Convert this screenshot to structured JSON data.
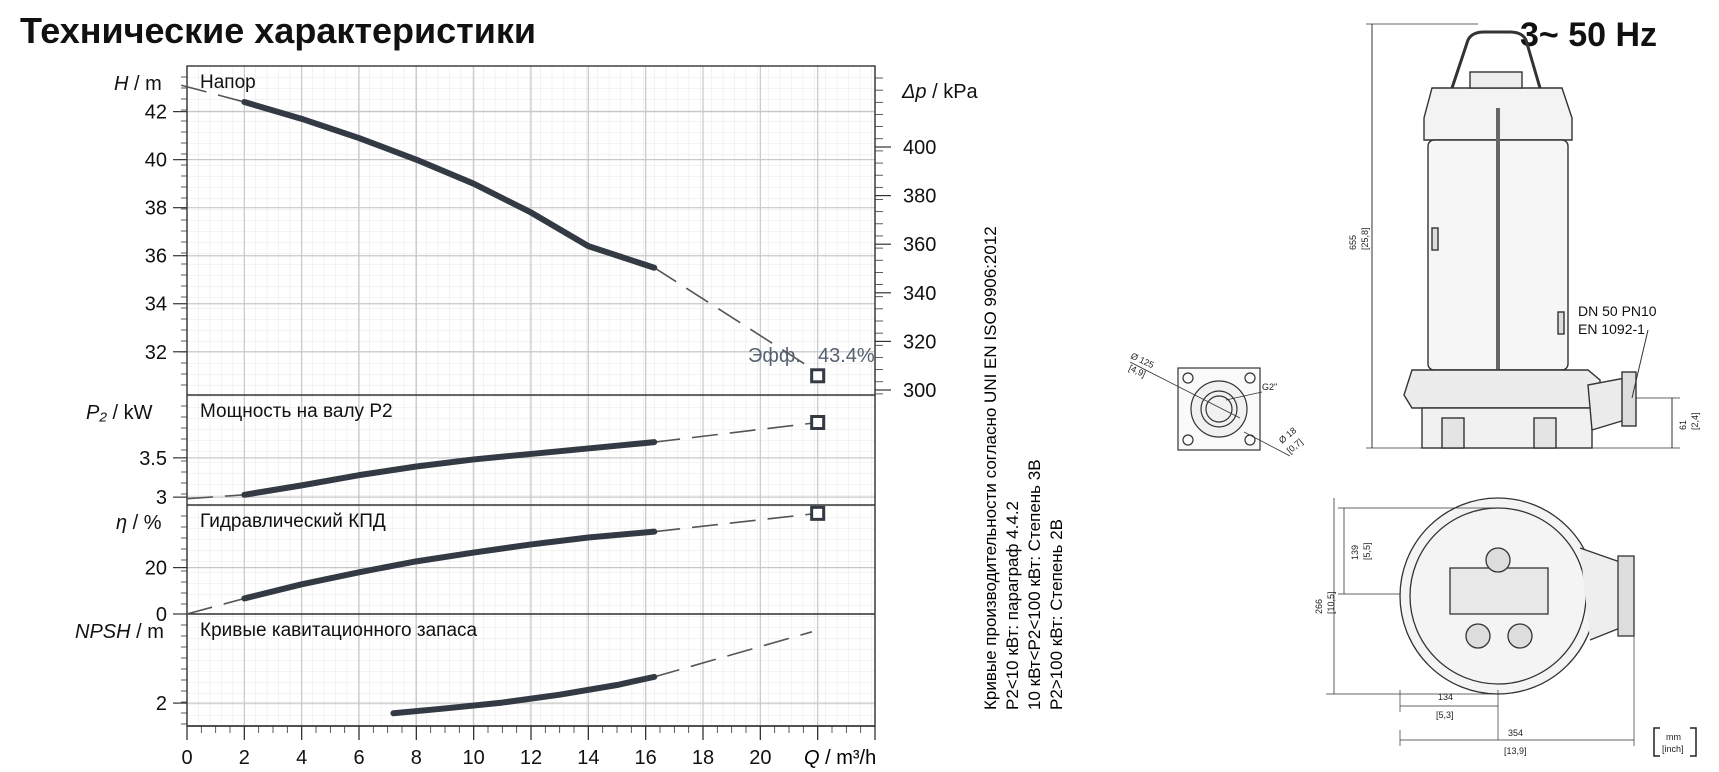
{
  "title": "Технические характеристики",
  "frequency": "3~ 50 Hz",
  "note_lines": [
    "Кривые производительности согласно UNI EN ISO 9906:2012",
    "P2<10 кВт: параграф 4.4.2",
    "10 кВт<P2<100 кВт: Степень 3B",
    "P2>100 кВт: Степень 2B"
  ],
  "x_axis": {
    "label_q": "Q",
    "label_unit": " / m³/h",
    "ticks": [
      "0",
      "2",
      "4",
      "6",
      "8",
      "10",
      "12",
      "14",
      "16",
      "18",
      "20"
    ]
  },
  "colors": {
    "curve": "#333a44",
    "grid": "#c8c8c8",
    "frame": "#333333"
  },
  "chart_data": [
    {
      "type": "line",
      "title": "Напор",
      "ylabel_symbol": "H",
      "ylabel_unit": " / m",
      "ylabel2_symbol": "Δp",
      "ylabel2_unit": " / kPa",
      "xlim": [
        0,
        24
      ],
      "ylim": [
        30.2,
        43.9
      ],
      "yticks": [
        "32",
        "34",
        "36",
        "38",
        "40",
        "42"
      ],
      "y2ticks": [
        "300",
        "320",
        "340",
        "360",
        "380",
        "400"
      ],
      "x": [
        2,
        4,
        6,
        8,
        10,
        12,
        14,
        16.3
      ],
      "y": [
        42.4,
        41.7,
        40.9,
        40.0,
        39.0,
        37.8,
        36.4,
        35.5
      ],
      "extrapolated": {
        "x": [
          -0.2,
          2,
          16.3,
          21.8
        ],
        "y": [
          43.1,
          42.4,
          35.5,
          31.3
        ]
      },
      "eff_label": "Эфф.",
      "eff_value": "43.4%",
      "marker": {
        "x": 22,
        "y": 31.0
      }
    },
    {
      "type": "line",
      "title": "Мощность на валу P2",
      "ylabel_symbol": "P₂",
      "ylabel_unit": " / kW",
      "xlim": [
        0,
        24
      ],
      "ylim": [
        2.9,
        4.3
      ],
      "yticks": [
        "3",
        "3.5"
      ],
      "x": [
        2,
        4,
        6,
        8,
        10,
        12,
        14,
        16.3
      ],
      "y": [
        3.03,
        3.15,
        3.28,
        3.39,
        3.48,
        3.55,
        3.62,
        3.7
      ],
      "extrapolated": {
        "x": [
          0,
          2,
          16.3,
          22
        ],
        "y": [
          2.98,
          3.03,
          3.7,
          3.95
        ]
      },
      "marker": {
        "x": 22,
        "y": 3.95
      }
    },
    {
      "type": "line",
      "title": "Гидравлический КПД",
      "ylabel_symbol": "η",
      "ylabel_unit": " / %",
      "xlim": [
        0,
        24
      ],
      "ylim": [
        0,
        47
      ],
      "yticks": [
        "0",
        "20"
      ],
      "x": [
        2,
        4,
        6,
        8,
        10,
        12,
        14,
        16.3
      ],
      "y": [
        6.7,
        12.8,
        18.0,
        22.7,
        26.5,
        30.0,
        33.0,
        35.5
      ],
      "extrapolated": {
        "x": [
          0,
          2,
          16.3,
          22
        ],
        "y": [
          0,
          6.7,
          35.5,
          43.4
        ]
      },
      "marker": {
        "x": 22,
        "y": 43.4
      }
    },
    {
      "type": "line",
      "title": "Кривые кавитационного запаса",
      "ylabel_symbol": "NPSH",
      "ylabel_unit": " / m",
      "xlim": [
        0,
        24
      ],
      "ylim": [
        1.1,
        5.5
      ],
      "yticks": [
        "2"
      ],
      "x": [
        7.2,
        9,
        11,
        13,
        15,
        16.3
      ],
      "y": [
        1.6,
        1.79,
        2.02,
        2.33,
        2.71,
        3.03
      ],
      "extrapolated": {
        "x": [
          16.3,
          21.8
        ],
        "y": [
          3.03,
          4.8
        ]
      }
    }
  ],
  "drawing": {
    "dim_height": "655",
    "dim_height_inch": "[25,8]",
    "flange_label_1": "DN 50 PN10",
    "flange_label_2": "EN 1092-1",
    "dim_61": "61",
    "dim_61_inch": "[2,4]",
    "dim_125": "Ø 125",
    "dim_125_inch": "[4,9]",
    "dim_g2": "G2\"",
    "dim_18": "Ø 18",
    "dim_18_inch": "[0,7]",
    "dim_139": "139",
    "dim_139_inch": "[5,5]",
    "dim_266": "266",
    "dim_266_inch": "[10,5]",
    "dim_134": "134",
    "dim_134_inch": "[5,3]",
    "dim_354": "354",
    "dim_354_inch": "[13,9]",
    "units_mm": "mm",
    "units_inch": "[inch]"
  }
}
